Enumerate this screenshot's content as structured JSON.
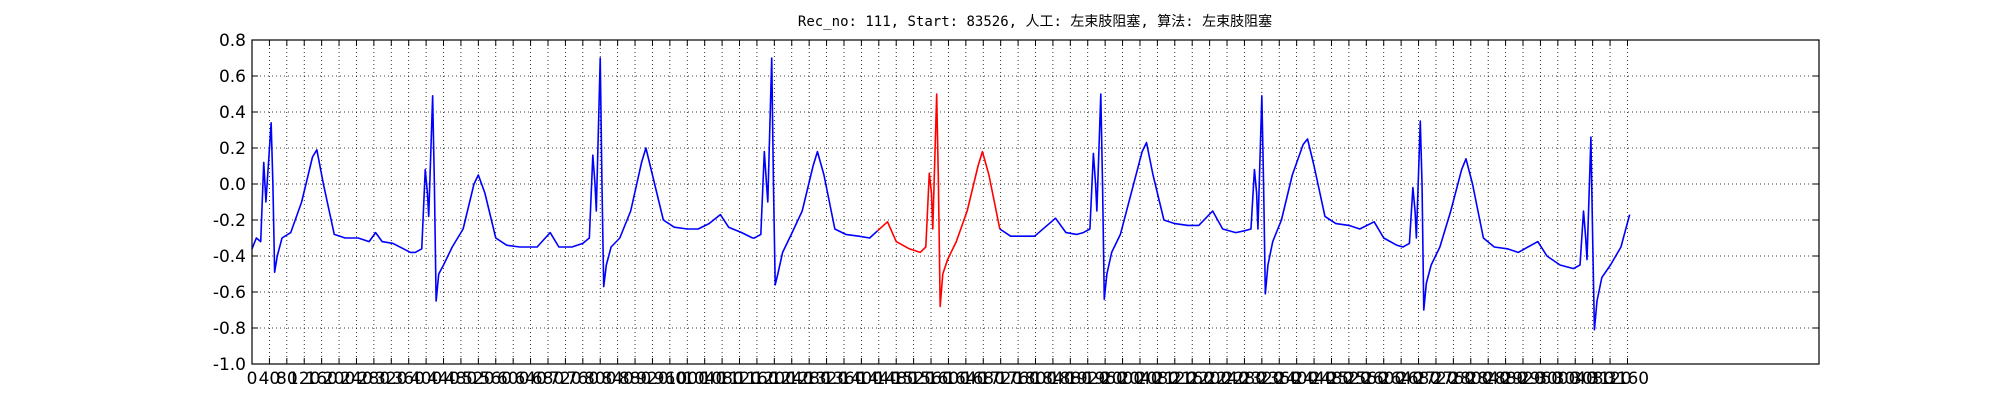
{
  "chart_data": {
    "type": "line",
    "title": "Rec_no: 111, Start: 83526, 人工: 左束肢阻塞, 算法: 左束肢阻塞",
    "xlim": [
      0,
      3600
    ],
    "ylim": [
      -1,
      0.8
    ],
    "xticks": [
      0,
      40,
      80,
      120,
      160,
      200,
      240,
      280,
      320,
      360,
      400,
      440,
      480,
      520,
      560,
      600,
      640,
      680,
      720,
      760,
      800,
      840,
      880,
      920,
      960,
      1000,
      1040,
      1080,
      1120,
      1160,
      1200,
      1240,
      1280,
      1320,
      1360,
      1400,
      1440,
      1480,
      1520,
      1560,
      1600,
      1640,
      1680,
      1720,
      1760,
      1800,
      1840,
      1880,
      1920,
      1960,
      2000,
      2040,
      2080,
      2120,
      2160,
      2200,
      2240,
      2280,
      2320,
      2360,
      2400,
      2440,
      2480,
      2520,
      2560,
      2600,
      2640,
      2680,
      2720,
      2760,
      2800,
      2840,
      2880,
      2920,
      2960,
      3000,
      3040,
      3080,
      3120,
      3160
    ],
    "yticks": [
      {
        "value": -1,
        "label": "-1.0"
      },
      -0.8,
      -0.6,
      -0.4,
      -0.2,
      {
        "value": 0,
        "label": "0.0"
      },
      0.2,
      0.4,
      0.6,
      0.8
    ],
    "grid": true,
    "series": [
      {
        "color": "#0000ff",
        "x": [
          0,
          10,
          20,
          27,
          32,
          44,
          48,
          52,
          58,
          69,
          89,
          114,
          139,
          149,
          164,
          189,
          214,
          244,
          269,
          284,
          299,
          324,
          364,
          375,
          390,
          398,
          403,
          406,
          415,
          419,
          423,
          429,
          440,
          460,
          485,
          510,
          520,
          535,
          560,
          585,
          615,
          640,
          655,
          685,
          705,
          735,
          760,
          775,
          783,
          788,
          791,
          800,
          804,
          808,
          814,
          825,
          845,
          870,
          895,
          905,
          920,
          945,
          970,
          1000,
          1025,
          1050,
          1076,
          1095,
          1125,
          1150,
          1154,
          1169,
          1177,
          1182,
          1185,
          1194,
          1198,
          1202,
          1208,
          1219,
          1239,
          1264,
          1289,
          1299,
          1314,
          1339,
          1364,
          1394,
          1419,
          1437,
          1577,
          1718,
          1743,
          1773,
          1798,
          1846,
          1870,
          1895,
          1910,
          1925,
          1933,
          1938,
          1941,
          1950,
          1954,
          1958,
          1964,
          1975,
          1995,
          2020,
          2045,
          2055,
          2070,
          2095,
          2120,
          2150,
          2175,
          2207,
          2230,
          2260,
          2280,
          2295,
          2303,
          2308,
          2311,
          2320,
          2324,
          2328,
          2334,
          2345,
          2365,
          2390,
          2415,
          2425,
          2440,
          2465,
          2490,
          2520,
          2545,
          2578,
          2600,
          2630,
          2644,
          2659,
          2667,
          2672,
          2675,
          2684,
          2688,
          2692,
          2698,
          2709,
          2729,
          2754,
          2779,
          2789,
          2804,
          2829,
          2854,
          2884,
          2909,
          2954,
          2975,
          3005,
          3036,
          3051,
          3059,
          3064,
          3067,
          3076,
          3080,
          3084,
          3090,
          3101,
          3121,
          3145,
          3165
        ],
        "values": [
          -0.36,
          -0.3,
          -0.32,
          0.12,
          -0.1,
          0.34,
          0.0,
          -0.49,
          -0.4,
          -0.3,
          -0.27,
          -0.1,
          0.15,
          0.19,
          0.0,
          -0.28,
          -0.3,
          -0.3,
          -0.32,
          -0.27,
          -0.32,
          -0.33,
          -0.38,
          -0.38,
          -0.36,
          0.08,
          -0.05,
          -0.18,
          0.49,
          0.0,
          -0.65,
          -0.5,
          -0.45,
          -0.35,
          -0.25,
          0.0,
          0.05,
          -0.05,
          -0.3,
          -0.34,
          -0.35,
          -0.35,
          -0.35,
          -0.27,
          -0.35,
          -0.35,
          -0.33,
          -0.3,
          0.16,
          0.0,
          -0.15,
          0.7,
          0.0,
          -0.57,
          -0.45,
          -0.35,
          -0.3,
          -0.15,
          0.12,
          0.2,
          0.05,
          -0.2,
          -0.24,
          -0.25,
          -0.25,
          -0.22,
          -0.17,
          -0.24,
          -0.27,
          -0.3,
          -0.3,
          -0.28,
          0.18,
          0.0,
          -0.1,
          0.7,
          0.0,
          -0.56,
          -0.5,
          -0.38,
          -0.28,
          -0.15,
          0.1,
          0.18,
          0.05,
          -0.25,
          -0.28,
          -0.29,
          -0.3,
          -0.26,
          null,
          -0.25,
          -0.29,
          -0.29,
          -0.29,
          -0.19,
          -0.27,
          -0.28,
          -0.27,
          -0.25,
          0.17,
          0.0,
          -0.15,
          0.5,
          0.0,
          -0.64,
          -0.5,
          -0.38,
          -0.28,
          -0.05,
          0.18,
          0.23,
          0.05,
          -0.2,
          -0.22,
          -0.23,
          -0.23,
          -0.15,
          -0.25,
          -0.27,
          -0.26,
          -0.25,
          0.08,
          -0.05,
          -0.25,
          0.49,
          0.0,
          -0.61,
          -0.45,
          -0.32,
          -0.2,
          0.05,
          0.22,
          0.25,
          0.1,
          -0.18,
          -0.22,
          -0.23,
          -0.25,
          -0.21,
          -0.3,
          -0.34,
          -0.35,
          -0.33,
          -0.02,
          -0.15,
          -0.3,
          0.35,
          0.0,
          -0.7,
          -0.55,
          -0.45,
          -0.35,
          -0.15,
          0.08,
          0.14,
          0.0,
          -0.3,
          -0.35,
          -0.36,
          -0.38,
          -0.32,
          -0.4,
          -0.45,
          -0.47,
          -0.45,
          -0.15,
          -0.3,
          -0.42,
          0.26,
          -0.3,
          -0.81,
          -0.65,
          -0.52,
          -0.45,
          -0.35,
          -0.17
        ]
      },
      {
        "color": "#ff0000",
        "x": [
          1437,
          1460,
          1480,
          1510,
          1535,
          1548,
          1556,
          1561,
          1564,
          1573,
          1577,
          1581,
          1587,
          1598,
          1618,
          1643,
          1668,
          1678,
          1693,
          1718
        ],
        "values": [
          -0.26,
          -0.21,
          -0.32,
          -0.36,
          -0.38,
          -0.35,
          0.06,
          -0.05,
          -0.25,
          0.5,
          0.0,
          -0.68,
          -0.5,
          -0.42,
          -0.32,
          -0.15,
          0.1,
          0.18,
          0.05,
          -0.25
        ]
      }
    ]
  }
}
